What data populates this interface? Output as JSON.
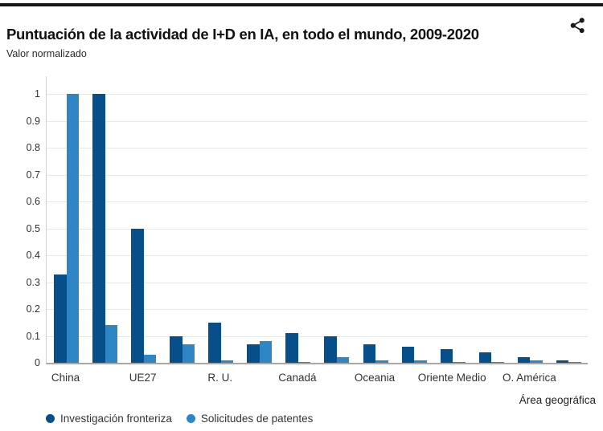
{
  "header": {
    "share_icon": "share-icon"
  },
  "chart_data": {
    "type": "bar",
    "title": "Puntuación de la actividad de I+D en IA, en todo el mundo, 2009-2020",
    "ylabel": "Valor normalizado",
    "xlabel": "Área geográfica",
    "ylim": [
      0,
      1
    ],
    "yticks": [
      0,
      0.1,
      0.2,
      0.3,
      0.4,
      0.5,
      0.6,
      0.7,
      0.8,
      0.9,
      1
    ],
    "grid": true,
    "legend_position": "bottom-left",
    "categories": [
      "China",
      "",
      "UE27",
      "",
      "R. U.",
      "",
      "Canadá",
      "",
      "Oceania",
      "",
      "Oriente Medio",
      "",
      "O. América",
      ""
    ],
    "series": [
      {
        "name": "Investigación fronteriza",
        "color": "#064f8a",
        "values": [
          0.33,
          1.0,
          0.5,
          0.1,
          0.15,
          0.07,
          0.11,
          0.1,
          0.07,
          0.06,
          0.05,
          0.04,
          0.02,
          0.01
        ]
      },
      {
        "name": "Solicitudes de patentes",
        "color": "#2f86c5",
        "values": [
          1.0,
          0.14,
          0.03,
          0.07,
          0.01,
          0.08,
          0.004,
          0.02,
          0.01,
          0.01,
          0.004,
          0.003,
          0.01,
          0.002
        ]
      }
    ]
  }
}
